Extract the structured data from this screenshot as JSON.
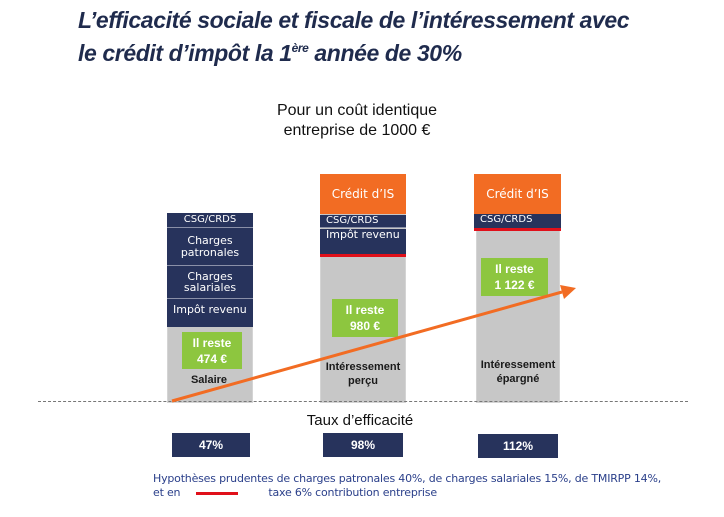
{
  "title": {
    "line1": "L’efficacité sociale et fiscale de l’intéressement avec",
    "line2_pre": "le crédit d’impôt la 1",
    "line2_sup": "ère",
    "line2_post": " année de 30%"
  },
  "subtitle": {
    "line1": "Pour un coût identique",
    "line2": "entreprise de 1000 €"
  },
  "chart_data": {
    "type": "stacked-bar",
    "title": "Pour un coût identique entreprise de 1000 €",
    "categories": [
      "Salaire",
      "Intéressement perçu",
      "Intéressement épargné"
    ],
    "columns": [
      {
        "label": "Salaire",
        "segments": [
          "CSG/CRDS",
          "Charges patronales",
          "Charges salariales",
          "Impôt revenu"
        ],
        "remaining_label": "Il reste",
        "remaining_value": "474 €",
        "efficiency": "47%"
      },
      {
        "label_line1": "Intéressement",
        "label_line2": "perçu",
        "credit": "Crédit d’IS",
        "segments": [
          "CSG/CRDS",
          "Impôt revenu"
        ],
        "remaining_label": "Il reste",
        "remaining_value": "980 €",
        "efficiency": "98%"
      },
      {
        "label_line1": "Intéressement",
        "label_line2": "épargné",
        "credit": "Crédit d’IS",
        "segments": [
          "CSG/CRDS"
        ],
        "remaining_label": "Il reste",
        "remaining_value": "1 122 €",
        "efficiency": "112%"
      }
    ],
    "values": [
      474,
      980,
      1122
    ],
    "efficiency_values": [
      47,
      98,
      112
    ],
    "efficiency_title": "Taux d’efficacité",
    "trend": "increasing"
  },
  "footnote": {
    "line1": "Hypothèses prudentes de charges patronales 40%, de charges salariales 15%, de TMIRPP 14%,",
    "line2_pre": "et en",
    "line2_post": "taxe 6% contribution entreprise"
  },
  "colors": {
    "navy": "#27335c",
    "orange": "#f26c23",
    "green": "#8dc63f",
    "grey": "#c7c7c7",
    "red": "#e0101a"
  }
}
